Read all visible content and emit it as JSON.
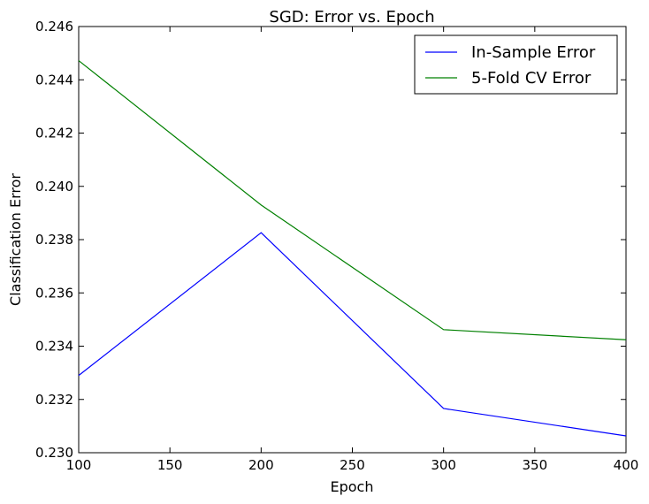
{
  "chart_data": {
    "type": "line",
    "title": "SGD: Error vs. Epoch",
    "xlabel": "Epoch",
    "ylabel": "Classification Error",
    "xlim": [
      100,
      400
    ],
    "ylim": [
      0.23,
      0.246
    ],
    "xticks": [
      "100",
      "150",
      "200",
      "250",
      "300",
      "350",
      "400"
    ],
    "yticks": [
      "0.230",
      "0.232",
      "0.234",
      "0.236",
      "0.238",
      "0.240",
      "0.242",
      "0.244",
      "0.246"
    ],
    "x": [
      100,
      200,
      300,
      400
    ],
    "series": [
      {
        "name": "In-Sample Error",
        "color": "#0000ff",
        "values": [
          0.2329,
          0.23826,
          0.23166,
          0.23063
        ]
      },
      {
        "name": "5-Fold CV Error",
        "color": "#008000",
        "values": [
          0.24472,
          0.2393,
          0.23462,
          0.23424
        ]
      }
    ],
    "legend_position": "top-right",
    "grid": false
  }
}
